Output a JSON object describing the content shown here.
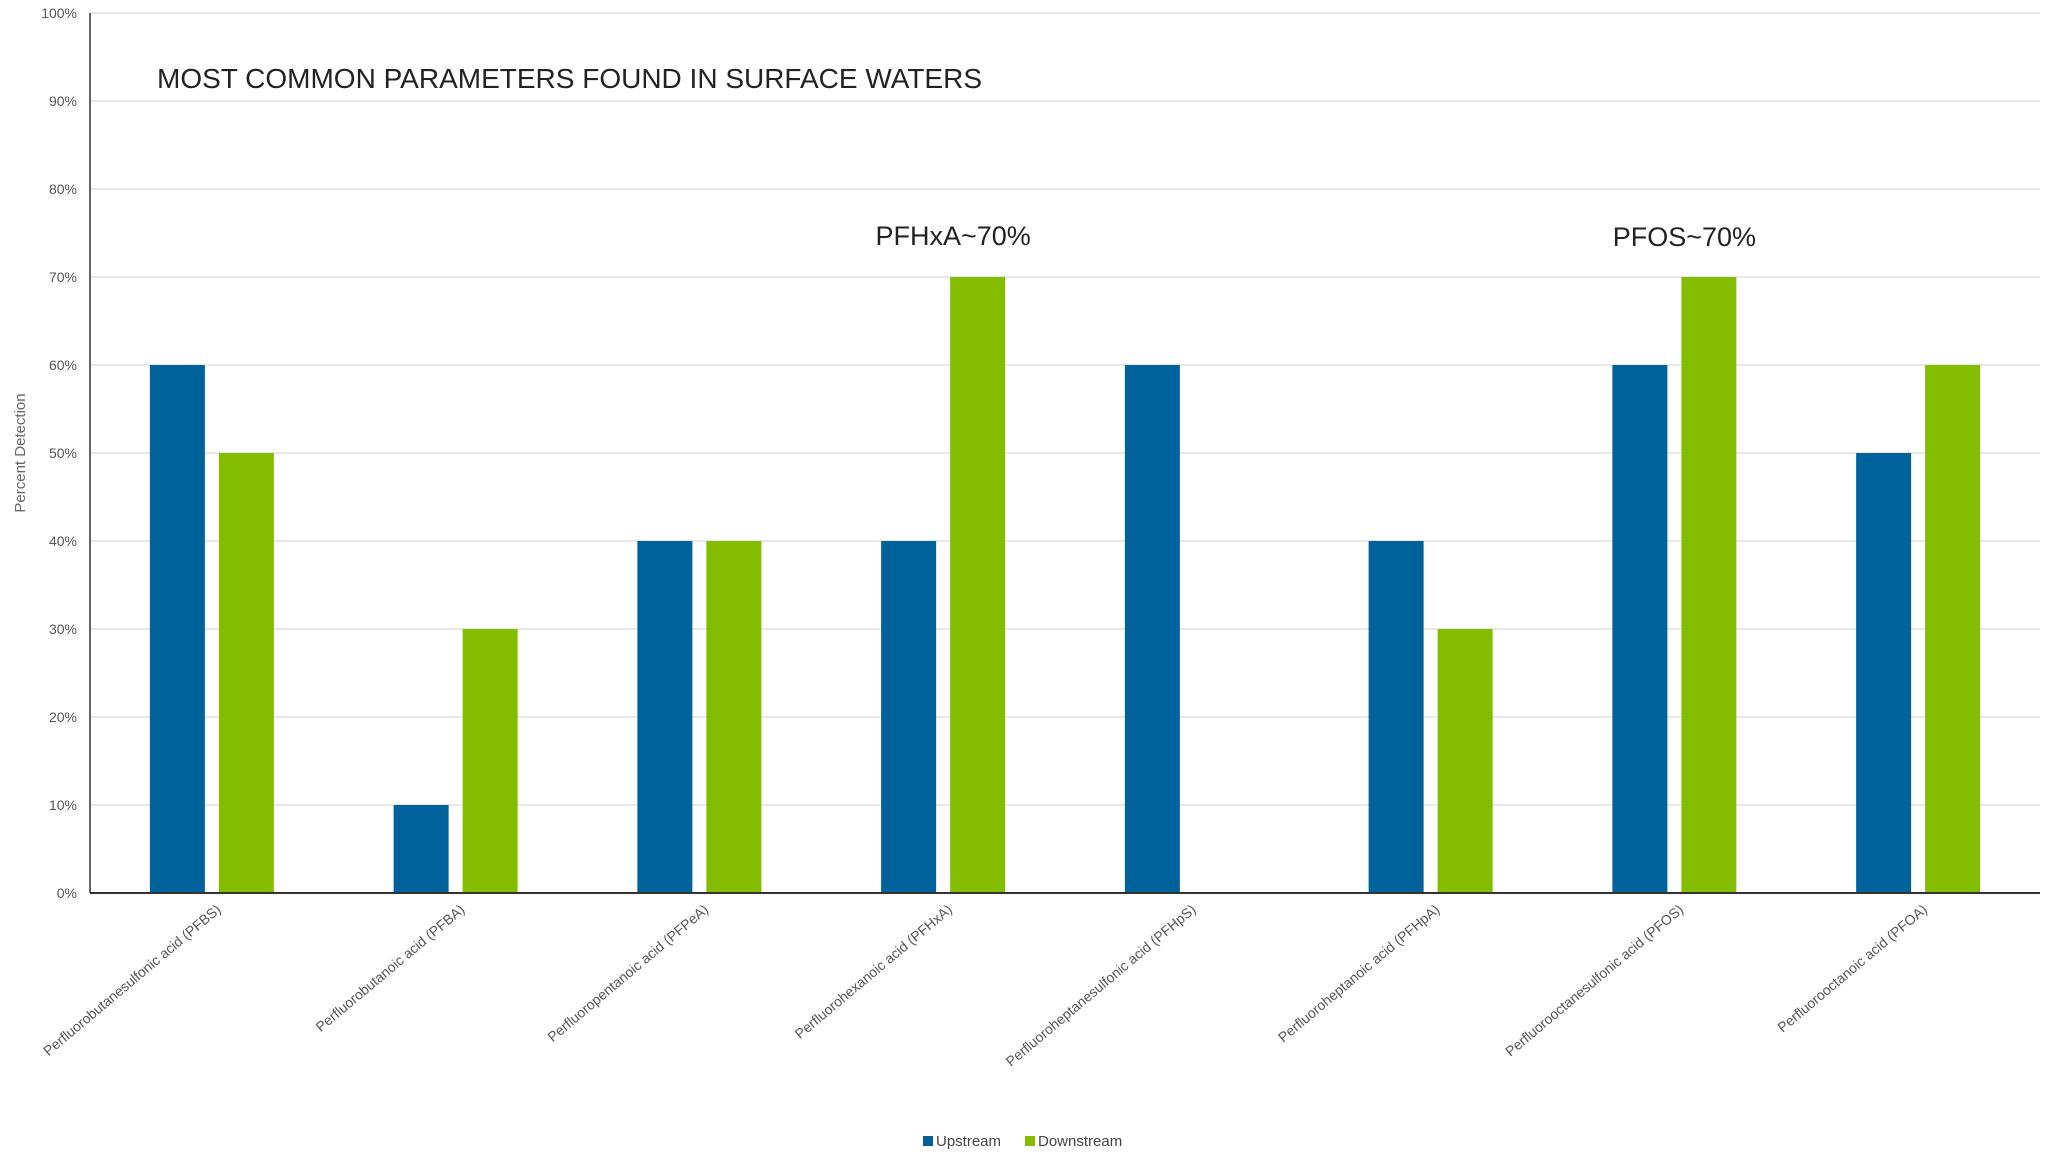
{
  "chart_data": {
    "type": "bar",
    "title": "MOST COMMON PARAMETERS FOUND IN SURFACE WATERS",
    "xlabel": "",
    "ylabel": "Percent Detection",
    "ylim": [
      0,
      100
    ],
    "yticks": [
      "0%",
      "10%",
      "20%",
      "30%",
      "40%",
      "50%",
      "60%",
      "70%",
      "80%",
      "90%",
      "100%"
    ],
    "categories": [
      "Perfluorobutanesulfonic acid (PFBS)",
      "Perfluorobutanoic acid (PFBA)",
      "Perfluoropentanoic acid (PFPeA)",
      "Perfluorohexanoic acid (PFHxA)",
      "Perfluoroheptanesulfonic acid (PFHpS)",
      "Perfluoroheptanoic acid (PFHpA)",
      "Perfluorooctanesulfonic acid (PFOS)",
      "Perfluorooctanoic acid (PFOA)"
    ],
    "series": [
      {
        "name": "Upstream",
        "color": "#00629b",
        "values": [
          60,
          10,
          40,
          40,
          60,
          40,
          60,
          50
        ]
      },
      {
        "name": "Downstream",
        "color": "#84bd00",
        "values": [
          50,
          30,
          40,
          70,
          0,
          30,
          70,
          60
        ]
      }
    ],
    "annotations": [
      {
        "text": "PFHxA~70%",
        "category_index": 3
      },
      {
        "text": "PFOS~70%",
        "category_index": 6
      }
    ],
    "grid": true,
    "legend_position": "bottom-center"
  }
}
